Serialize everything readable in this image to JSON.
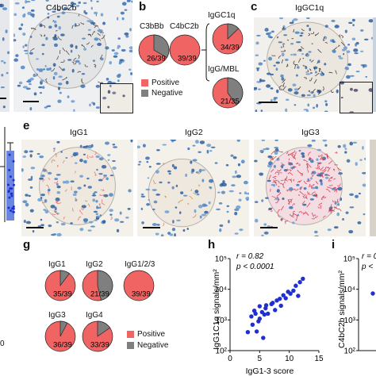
{
  "panel_letters": {
    "b": "b",
    "c": "c",
    "e": "e",
    "g": "g",
    "h": "h",
    "i": "i"
  },
  "micrographs": {
    "top_middle_title": "C4bC2b",
    "top_right_title": "IgGC1q",
    "e_titles": [
      "IgG1",
      "IgG2",
      "IgG3"
    ]
  },
  "panel_b": {
    "pies": [
      {
        "label": "C3bBb",
        "text": "26/39",
        "positive": 26,
        "total": 39
      },
      {
        "label": "C4bC2b",
        "text": "39/39",
        "positive": 39,
        "total": 39
      },
      {
        "label": "IgGC1q",
        "text": "34/39",
        "positive": 34,
        "total": 39
      },
      {
        "label": "IgG/MBL",
        "text": "21/35",
        "positive": 21,
        "total": 35
      }
    ],
    "legend": {
      "positive": "Positive",
      "negative": "Negative"
    }
  },
  "panel_g": {
    "pies": [
      {
        "label": "IgG1",
        "text": "35/39",
        "positive": 35,
        "total": 39
      },
      {
        "label": "IgG2",
        "text": "21/39",
        "positive": 21,
        "total": 39
      },
      {
        "label": "IgG1/2/3",
        "text": "39/39",
        "positive": 39,
        "total": 39
      },
      {
        "label": "IgG3",
        "text": "36/39",
        "positive": 36,
        "total": 39
      },
      {
        "label": "IgG4",
        "text": "33/39",
        "positive": 33,
        "total": 39
      }
    ],
    "legend": {
      "positive": "Positive",
      "negative": "Negative"
    }
  },
  "colors": {
    "positive": "#f06464",
    "negative": "#7f7f7f",
    "points": "#1f2fd0"
  },
  "chart_data": [
    {
      "type": "scatter",
      "panel": "h",
      "xlabel": "IgG1-3 score",
      "ylabel": "IgG1C1q signals/mm²",
      "xlim": [
        0,
        15
      ],
      "xticks": [
        0,
        5,
        10,
        15
      ],
      "ylim": [
        100,
        100000
      ],
      "yscale": "log",
      "ytick_labels": [
        "10²",
        "10³",
        "10⁴",
        "10⁵"
      ],
      "annotations": {
        "r": "r = 0.82",
        "p": "p < 0.0001"
      },
      "points": [
        [
          3,
          400
        ],
        [
          3.6,
          1300
        ],
        [
          3.8,
          700
        ],
        [
          4.1,
          2000
        ],
        [
          4.3,
          1600
        ],
        [
          4.5,
          420
        ],
        [
          4.8,
          900
        ],
        [
          5,
          1100
        ],
        [
          5,
          2800
        ],
        [
          5.4,
          1800
        ],
        [
          5.6,
          260
        ],
        [
          5.8,
          1500
        ],
        [
          6,
          2400
        ],
        [
          6.1,
          3000
        ],
        [
          6.4,
          1600
        ],
        [
          7,
          3300
        ],
        [
          7.2,
          3600
        ],
        [
          7.6,
          2100
        ],
        [
          7.9,
          4300
        ],
        [
          8.4,
          4900
        ],
        [
          8.6,
          2900
        ],
        [
          9,
          6400
        ],
        [
          9.4,
          5100
        ],
        [
          9.8,
          8300
        ],
        [
          10.2,
          7200
        ],
        [
          10.7,
          9000
        ],
        [
          11.1,
          13000
        ],
        [
          11.5,
          6100
        ],
        [
          11.8,
          17000
        ],
        [
          12.3,
          22000
        ]
      ]
    },
    {
      "type": "scatter",
      "panel": "i",
      "ylabel": "C4bC2b signals/mm²",
      "ytick_labels": [
        "10²",
        "10³",
        "10⁴",
        "10⁵"
      ],
      "annotations": {
        "r": "r = 0",
        "p": "p <"
      }
    }
  ],
  "left_stub": {
    "ticks": [
      "0"
    ]
  }
}
